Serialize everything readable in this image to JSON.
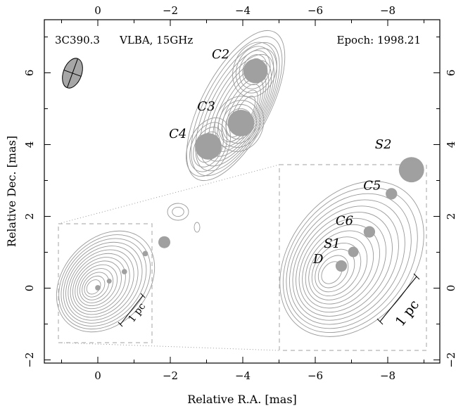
{
  "chart_data": {
    "type": "scatter",
    "title": "3C390.3",
    "instrument": "VLBA, 15GHz",
    "epoch": "Epoch: 1998.21",
    "xlabel": "Relative R.A. [mas]",
    "ylabel": "Relative Dec. [mas]",
    "xlim": [
      1.5,
      -9.2
    ],
    "ylim": [
      -2.2,
      7.5
    ],
    "x_ticks": [
      0,
      -2,
      -4,
      -6,
      -8
    ],
    "x_tick_labels": [
      "0",
      "−2",
      "−4",
      "−6",
      "−8"
    ],
    "y_ticks": [
      -2,
      0,
      2,
      4,
      6
    ],
    "y_tick_labels": [
      "−2",
      "0",
      "2",
      "4",
      "6"
    ],
    "grid": false,
    "marker_color": "#a0a0a0",
    "contour_color": "#9a9a9a",
    "components": [
      {
        "label": "C2",
        "x": -4.35,
        "y": 6.05,
        "r": 0.34
      },
      {
        "label": "C3",
        "x": -3.95,
        "y": 4.6,
        "r": 0.37
      },
      {
        "label": "C4",
        "x": -3.05,
        "y": 3.95,
        "r": 0.37
      }
    ],
    "inset": {
      "scale_label": "1 pc",
      "components": [
        {
          "label": "D",
          "x": 0.0,
          "y": 0.0,
          "r": 0.34
        },
        {
          "label": "S1",
          "x": -0.3,
          "y": 0.35,
          "r": 0.31
        },
        {
          "label": "C6",
          "x": -0.7,
          "y": 0.85,
          "r": 0.34
        },
        {
          "label": "C5",
          "x": -1.25,
          "y": 1.8,
          "r": 0.34
        },
        {
          "label": "S2",
          "x": -1.75,
          "y": 2.4,
          "r": 0.75
        }
      ]
    }
  }
}
